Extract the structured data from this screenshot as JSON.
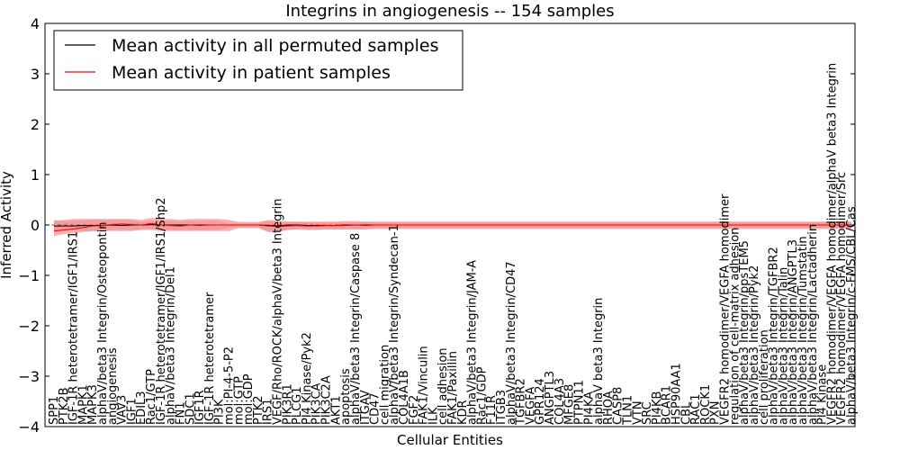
{
  "chart_data": {
    "type": "line",
    "title": "Integrins in angiogenesis -- 154 samples",
    "xlabel": "Cellular Entities",
    "ylabel": "Inferred Activity",
    "ylim": [
      -4,
      4
    ],
    "yticks": [
      4,
      3,
      2,
      1,
      0,
      -1,
      -2,
      -3,
      -4
    ],
    "ytick_labels": [
      "4",
      "3",
      "2",
      "1",
      "0",
      "−1",
      "−2",
      "−3",
      "−4"
    ],
    "grid": false,
    "legend_position": "top-left",
    "categories": [
      "SPP1",
      "PTK2B",
      "IGF-1R heterotetramer/IGF1/IRS1",
      "MAPK1",
      "MAPK3",
      "alphaV/beta3 Integrin/Osteopontin",
      "angiogenesis",
      "VAV3",
      "IGF1",
      "EDIL3",
      "Rac1/GTP",
      "IGF-1R heterotetramer/IGF1/IRS1/Shp2",
      "alphaV/beta3 Integrin/Del1",
      "FN1",
      "SDC1",
      "IGF1R",
      "IGF-1R heterotetramer",
      "PI3K",
      "mol:PI-4-5-P2",
      "mol:GTP",
      "mol:GDP",
      "PTK2",
      "IRS1",
      "VEGF/Rho/ROCK/alphaV/beta3 Integrin",
      "PIK3R1",
      "PLCG1",
      "PI4 Kinase/Pyk2",
      "PIK3CA",
      "PIK3C2A",
      "AKT1",
      "apoptosis",
      "alphaV/beta3 Integrin/Caspase 8",
      "ITGAV",
      "CD47",
      "cell migration",
      "alphaV/beta3 Integrin/Syndecan-1",
      "COL4A1B",
      "FGF2",
      "FAK1/Vinculin",
      "ILK",
      "cell adhesion",
      "FAK1/Paxillin",
      "KDR",
      "alphaV/beta3 Integrin/JAM-A",
      "Rac1/GDP",
      "F11R",
      "ITGB3",
      "alphaV/beta3 Integrin/CD47",
      "TGFBR2",
      "VEGFA",
      "GPR124",
      "ANGPTL3",
      "COL4A3",
      "MFGE8",
      "PTPN11",
      "PI4KA",
      "alphaV beta3 Integrin",
      "RHOA",
      "CASP8",
      "TLN1",
      "VTN",
      "SRC",
      "PI4KB",
      "BCAR1",
      "HSP90AA1",
      "CBL",
      "RAC1",
      "ROCK1",
      "PXN",
      "VEGFR2 homodimer/VEGFA homodimer",
      "regulation of cell-matrix adhesion",
      "alphaV/beta3 Integrin/ppsTEM5",
      "alphaV/beta3 Integrin/Pyk2",
      "cell proliferation",
      "alphaV/beta3 Integrin/TGFBR2",
      "alphaV/beta3 Integrin/Talin",
      "alphaV/beta3 Integrin/ANGPTL3",
      "alphaV/beta3 Integrin/Tumstatin",
      "alphaV/beta3 Integrin/Lactadherin",
      "PI4 Kinase",
      "VEGFR2 homodimer/VEGFA homodimer/alphaV beta3 Integrin",
      "VEGFR2 homodimer/VEGFA homodimer/Src",
      "alphaV/beta3 Integrin/c-FMS/CBL/Cas"
    ],
    "series": [
      {
        "name": "Mean activity in all permuted samples",
        "color": "#000000",
        "values": [
          -0.02,
          -0.02,
          -0.02,
          -0.01,
          -0.01,
          -0.01,
          0.0,
          -0.01,
          0.0,
          0.0,
          0.01,
          0.0,
          0.0,
          0.0,
          0.0,
          0.0,
          0.0,
          0.0,
          0.0,
          0.0,
          0.0,
          0.0,
          -0.01,
          -0.02,
          0.0,
          0.0,
          -0.01,
          -0.01,
          -0.01,
          -0.01,
          0.0,
          0.0,
          0.0,
          0.0,
          0.0,
          0.0,
          0.0,
          0.0,
          0.0,
          0.0,
          0.0,
          0.0,
          0.0,
          0.0,
          0.0,
          0.0,
          0.0,
          0.0,
          0.0,
          0.0,
          0.0,
          0.0,
          0.0,
          0.0,
          0.0,
          0.0,
          0.0,
          0.0,
          0.0,
          0.0,
          0.0,
          0.0,
          0.0,
          0.0,
          0.0,
          0.0,
          0.0,
          0.0,
          0.0,
          0.0,
          0.0,
          0.0,
          0.0,
          0.0,
          0.0,
          0.0,
          0.0,
          0.0,
          0.0,
          0.0,
          0.0,
          0.0,
          0.0
        ],
        "band_upper": [
          0.1,
          0.08,
          0.08,
          0.1,
          0.1,
          0.1,
          0.1,
          0.1,
          0.1,
          0.06,
          0.08,
          0.08,
          0.08,
          0.08,
          0.08,
          0.08,
          0.08,
          0.08,
          0.04,
          0.04,
          0.04,
          0.04,
          0.08,
          0.06,
          0.06,
          0.06,
          0.05,
          0.05,
          0.05,
          0.05,
          0.05,
          0.05,
          0.06,
          0.05,
          0.05,
          0.05,
          0.05,
          0.05,
          0.05,
          0.05,
          0.05,
          0.05,
          0.05,
          0.05,
          0.05,
          0.05,
          0.05,
          0.05,
          0.05,
          0.05,
          0.05,
          0.05,
          0.05,
          0.05,
          0.05,
          0.05,
          0.05,
          0.05,
          0.05,
          0.05,
          0.05,
          0.05,
          0.05,
          0.05,
          0.05,
          0.05,
          0.05,
          0.05,
          0.05,
          0.05,
          0.05,
          0.05,
          0.05,
          0.05,
          0.05,
          0.05,
          0.05,
          0.05,
          0.05,
          0.05,
          0.05,
          0.05,
          0.05
        ],
        "band_lower": [
          -0.12,
          -0.1,
          -0.1,
          -0.12,
          -0.12,
          -0.12,
          -0.1,
          -0.1,
          -0.1,
          -0.08,
          -0.08,
          -0.1,
          -0.1,
          -0.1,
          -0.1,
          -0.1,
          -0.1,
          -0.1,
          -0.05,
          -0.05,
          -0.05,
          -0.05,
          -0.12,
          -0.12,
          -0.1,
          -0.08,
          -0.08,
          -0.08,
          -0.08,
          -0.08,
          -0.08,
          -0.08,
          -0.08,
          -0.06,
          -0.06,
          -0.06,
          -0.06,
          -0.06,
          -0.06,
          -0.06,
          -0.06,
          -0.06,
          -0.06,
          -0.06,
          -0.06,
          -0.06,
          -0.06,
          -0.06,
          -0.06,
          -0.06,
          -0.06,
          -0.06,
          -0.06,
          -0.06,
          -0.06,
          -0.06,
          -0.06,
          -0.06,
          -0.06,
          -0.06,
          -0.06,
          -0.06,
          -0.06,
          -0.06,
          -0.06,
          -0.06,
          -0.06,
          -0.06,
          -0.06,
          -0.06,
          -0.06,
          -0.06,
          -0.06,
          -0.06,
          -0.06,
          -0.06,
          -0.06,
          -0.06,
          -0.06,
          -0.06,
          -0.06,
          -0.06,
          -0.06
        ]
      },
      {
        "name": "Mean activity in patient samples",
        "color": "#ff0000",
        "values": [
          -0.12,
          -0.1,
          -0.08,
          -0.05,
          -0.02,
          -0.01,
          0.01,
          0.02,
          0.01,
          0.0,
          0.03,
          0.0,
          -0.01,
          -0.02,
          0.0,
          -0.01,
          0.0,
          0.0,
          0.0,
          0.0,
          0.0,
          0.0,
          -0.02,
          -0.03,
          -0.02,
          -0.01,
          -0.02,
          -0.02,
          -0.01,
          -0.01,
          -0.01,
          0.0,
          -0.01,
          0.0,
          0.0,
          0.0,
          0.0,
          0.0,
          0.0,
          0.0,
          0.0,
          0.0,
          0.0,
          0.0,
          0.0,
          0.0,
          0.0,
          0.0,
          0.0,
          0.0,
          0.0,
          0.0,
          0.0,
          0.0,
          0.0,
          0.0,
          0.0,
          0.0,
          0.0,
          0.0,
          0.0,
          0.0,
          0.0,
          0.0,
          0.0,
          0.0,
          0.0,
          0.0,
          0.0,
          0.0,
          0.0,
          0.0,
          0.0,
          0.0,
          0.0,
          0.0,
          0.0,
          0.0,
          0.0,
          0.0,
          0.0,
          0.0,
          0.0
        ],
        "band_upper": [
          0.08,
          0.1,
          0.12,
          0.12,
          0.12,
          0.12,
          0.12,
          0.12,
          0.12,
          0.1,
          0.14,
          0.12,
          0.12,
          0.1,
          0.12,
          0.12,
          0.12,
          0.12,
          0.1,
          0.06,
          0.06,
          0.06,
          0.1,
          0.09,
          0.07,
          0.07,
          0.07,
          0.07,
          0.07,
          0.07,
          0.08,
          0.08,
          0.07,
          0.07,
          0.07,
          0.07,
          0.07,
          0.07,
          0.07,
          0.07,
          0.07,
          0.07,
          0.07,
          0.07,
          0.07,
          0.07,
          0.07,
          0.07,
          0.07,
          0.07,
          0.07,
          0.07,
          0.07,
          0.07,
          0.07,
          0.07,
          0.07,
          0.07,
          0.07,
          0.07,
          0.07,
          0.07,
          0.07,
          0.07,
          0.07,
          0.07,
          0.07,
          0.07,
          0.07,
          0.07,
          0.07,
          0.07,
          0.07,
          0.07,
          0.07,
          0.07,
          0.07,
          0.07,
          0.07,
          0.07,
          0.07,
          0.07,
          0.07
        ],
        "band_lower": [
          -0.22,
          -0.18,
          -0.16,
          -0.14,
          -0.12,
          -0.12,
          -0.12,
          -0.12,
          -0.12,
          -0.1,
          -0.1,
          -0.12,
          -0.12,
          -0.12,
          -0.12,
          -0.12,
          -0.12,
          -0.12,
          -0.12,
          -0.06,
          -0.06,
          -0.06,
          -0.14,
          -0.14,
          -0.1,
          -0.09,
          -0.1,
          -0.1,
          -0.09,
          -0.09,
          -0.09,
          -0.09,
          -0.09,
          -0.08,
          -0.08,
          -0.08,
          -0.08,
          -0.08,
          -0.08,
          -0.08,
          -0.08,
          -0.08,
          -0.08,
          -0.08,
          -0.08,
          -0.08,
          -0.08,
          -0.08,
          -0.08,
          -0.08,
          -0.08,
          -0.08,
          -0.08,
          -0.08,
          -0.08,
          -0.08,
          -0.08,
          -0.08,
          -0.08,
          -0.08,
          -0.08,
          -0.08,
          -0.08,
          -0.08,
          -0.08,
          -0.08,
          -0.08,
          -0.08,
          -0.08,
          -0.08,
          -0.08,
          -0.08,
          -0.08,
          -0.08,
          -0.08,
          -0.08,
          -0.08,
          -0.08,
          -0.08,
          -0.08,
          -0.08,
          -0.08,
          -0.08
        ]
      }
    ]
  }
}
